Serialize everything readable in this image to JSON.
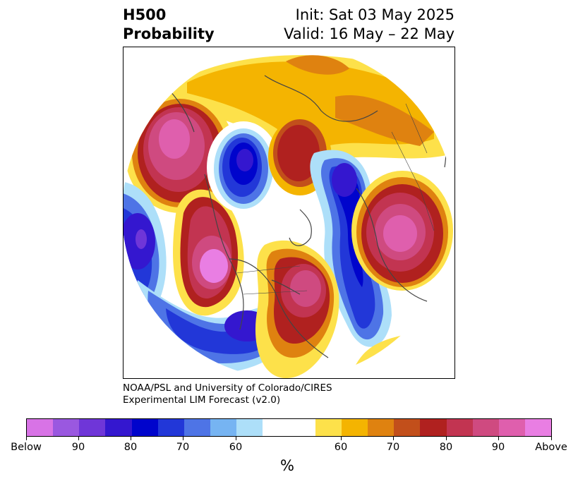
{
  "header": {
    "title_line1": "H500",
    "title_line2": "Probability",
    "init": "Init: Sat 03 May 2025",
    "valid": "Valid: 16 May – 22 May"
  },
  "credit": {
    "line1": "NOAA/PSL and University of Colorado/CIRES",
    "line2": "Experimental LIM Forecast (v2.0)"
  },
  "colorbar": {
    "colors": [
      "#d873e6",
      "#9a58e0",
      "#6f36d8",
      "#3417cf",
      "#0004cc",
      "#2237d8",
      "#4e74e6",
      "#76b4f2",
      "#addff9",
      "#ffffff",
      "#ffffff",
      "#fde14a",
      "#f4b401",
      "#df8210",
      "#c24f1b",
      "#b0211f",
      "#c23451",
      "#cf4a80",
      "#df5fad",
      "#e97ee3"
    ],
    "ticks": [
      "Below",
      "90",
      "80",
      "70",
      "60",
      "60",
      "70",
      "80",
      "90",
      "Above"
    ],
    "unit": "%"
  }
}
